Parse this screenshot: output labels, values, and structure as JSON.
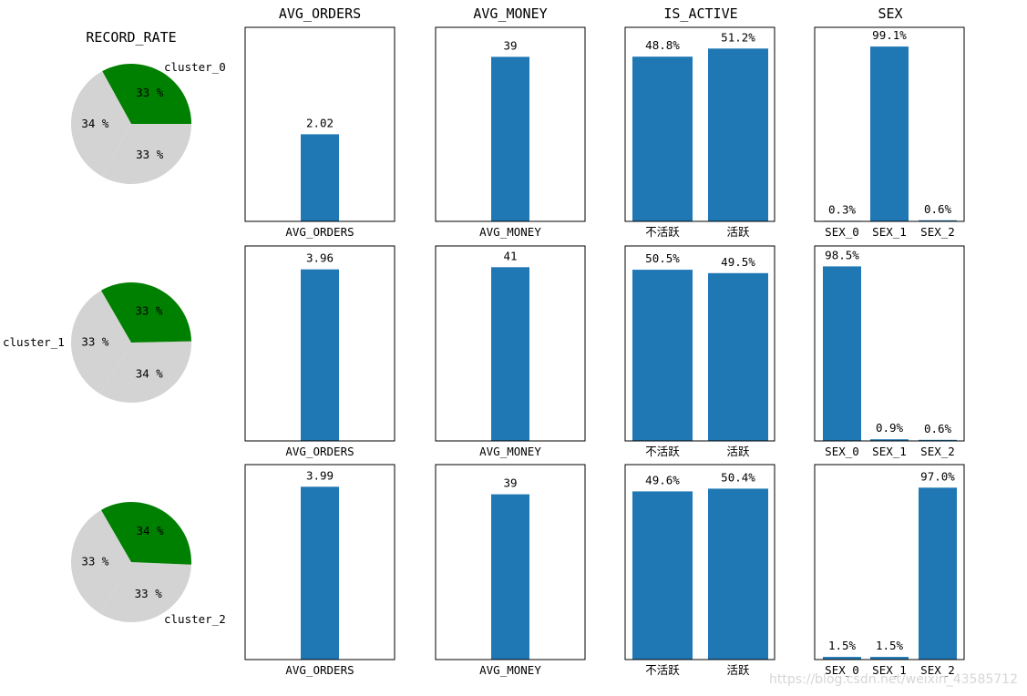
{
  "figure": {
    "background": "#ffffff",
    "bar_color": "#1f77b4",
    "highlight_color": "#008000",
    "other_color": "#d3d3d3"
  },
  "watermark": "https://blog.csdn.net/weixin_43585712",
  "column_titles": {
    "record_rate": "RECORD_RATE",
    "avg_orders": "AVG_ORDERS",
    "avg_money": "AVG_MONEY",
    "is_active": "IS_ACTIVE",
    "sex": "SEX"
  },
  "chart_data": [
    {
      "type": "pie",
      "column": "RECORD_RATE",
      "title": "RECORD_RATE",
      "clusters": [
        {
          "label": "cluster_0",
          "slices": [
            {
              "name": "cluster_0",
              "value": 33,
              "label": "33 %",
              "color": "#008000",
              "highlight": true
            },
            {
              "name": "rest_a",
              "value": 34,
              "label": "34 %",
              "color": "#d3d3d3"
            },
            {
              "name": "rest_b",
              "value": 33,
              "label": "33 %",
              "color": "#d3d3d3"
            }
          ]
        },
        {
          "label": "cluster_1",
          "slices": [
            {
              "name": "rest_a",
              "value": 33,
              "label": "33 %",
              "color": "#d3d3d3"
            },
            {
              "name": "rest_b",
              "value": 34,
              "label": "34 %",
              "color": "#d3d3d3"
            },
            {
              "name": "cluster_1",
              "value": 33,
              "label": "33 %",
              "color": "#008000",
              "highlight": true
            }
          ]
        },
        {
          "label": "cluster_2",
          "slices": [
            {
              "name": "rest_a",
              "value": 33,
              "label": "33 %",
              "color": "#d3d3d3"
            },
            {
              "name": "rest_b",
              "value": 33,
              "label": "33 %",
              "color": "#d3d3d3"
            },
            {
              "name": "cluster_2",
              "value": 34,
              "label": "34 %",
              "color": "#008000",
              "highlight": true
            }
          ]
        }
      ]
    },
    {
      "type": "bar",
      "column": "AVG_ORDERS",
      "title": "AVG_ORDERS",
      "categories": [
        "AVG_ORDERS"
      ],
      "ylim": [
        0,
        4.5
      ],
      "rows": [
        {
          "cluster": "cluster_0",
          "values": [
            2.02
          ],
          "labels": [
            "2.02"
          ]
        },
        {
          "cluster": "cluster_1",
          "values": [
            3.96
          ],
          "labels": [
            "3.96"
          ]
        },
        {
          "cluster": "cluster_2",
          "values": [
            3.99
          ],
          "labels": [
            "3.99"
          ]
        }
      ]
    },
    {
      "type": "bar",
      "column": "AVG_MONEY",
      "title": "AVG_MONEY",
      "categories": [
        "AVG_MONEY"
      ],
      "ylim": [
        0,
        46
      ],
      "rows": [
        {
          "cluster": "cluster_0",
          "values": [
            39
          ],
          "labels": [
            "39"
          ]
        },
        {
          "cluster": "cluster_1",
          "values": [
            41
          ],
          "labels": [
            "41"
          ]
        },
        {
          "cluster": "cluster_2",
          "values": [
            39
          ],
          "labels": [
            "39"
          ]
        }
      ]
    },
    {
      "type": "bar",
      "column": "IS_ACTIVE",
      "title": "IS_ACTIVE",
      "categories": [
        "不活跃",
        "活跃"
      ],
      "ylim": [
        0,
        57.5
      ],
      "rows": [
        {
          "cluster": "cluster_0",
          "values": [
            48.8,
            51.2
          ],
          "labels": [
            "48.8%",
            "51.2%"
          ]
        },
        {
          "cluster": "cluster_1",
          "values": [
            50.5,
            49.5
          ],
          "labels": [
            "50.5%",
            "49.5%"
          ]
        },
        {
          "cluster": "cluster_2",
          "values": [
            49.6,
            50.4
          ],
          "labels": [
            "49.6%",
            "50.4%"
          ]
        }
      ]
    },
    {
      "type": "bar",
      "column": "SEX",
      "title": "SEX",
      "categories": [
        "SEX_0",
        "SEX_1",
        "SEX_2"
      ],
      "ylim": [
        0,
        110
      ],
      "rows": [
        {
          "cluster": "cluster_0",
          "values": [
            0.3,
            99.1,
            0.6
          ],
          "labels": [
            "0.3%",
            "99.1%",
            "0.6%"
          ]
        },
        {
          "cluster": "cluster_1",
          "values": [
            98.5,
            0.9,
            0.6
          ],
          "labels": [
            "98.5%",
            "0.9%",
            "0.6%"
          ]
        },
        {
          "cluster": "cluster_2",
          "values": [
            1.5,
            1.5,
            97.0
          ],
          "labels": [
            "1.5%",
            "1.5%",
            "97.0%"
          ]
        }
      ]
    }
  ]
}
